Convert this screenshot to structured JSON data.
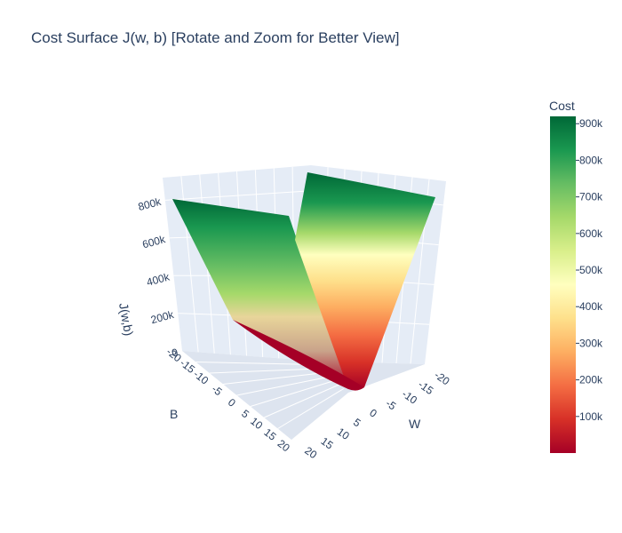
{
  "chart_data": {
    "type": "surface",
    "title": "Cost Surface J(w, b) [Rotate and Zoom for Better View]",
    "x_axis": {
      "label": "W",
      "ticks": [
        "-20",
        "-15",
        "-10",
        "-5",
        "0",
        "5",
        "10",
        "15",
        "20"
      ],
      "range": [
        -20,
        20
      ]
    },
    "y_axis": {
      "label": "B",
      "ticks": [
        "-20",
        "-15",
        "-10",
        "-5",
        "0",
        "5",
        "10",
        "15",
        "20"
      ],
      "range": [
        -20,
        20
      ]
    },
    "z_axis": {
      "label": "J(w,b)",
      "ticks": [
        "0",
        "200k",
        "400k",
        "600k",
        "800k"
      ],
      "range": [
        0,
        920000
      ]
    },
    "surface": {
      "description_function": "J grows quadratically in w with minimum near w=0; nearly flat along b",
      "max_value": 920000,
      "min_value": 0
    },
    "colorbar": {
      "title": "Cost",
      "colorscale": "RdYlGn",
      "ticks": [
        "100k",
        "200k",
        "300k",
        "400k",
        "500k",
        "600k",
        "700k",
        "800k",
        "900k"
      ],
      "range": [
        0,
        920000
      ]
    }
  },
  "colors": {
    "scene_bg": "#e5ecf6",
    "grid": "#ffffff",
    "text": "#2a3f5f",
    "scale": [
      "#a50026",
      "#d73027",
      "#f46d43",
      "#fdae61",
      "#fee08b",
      "#ffffbf",
      "#d9ef8b",
      "#a6d96a",
      "#66bd63",
      "#1a9850",
      "#006837"
    ]
  }
}
